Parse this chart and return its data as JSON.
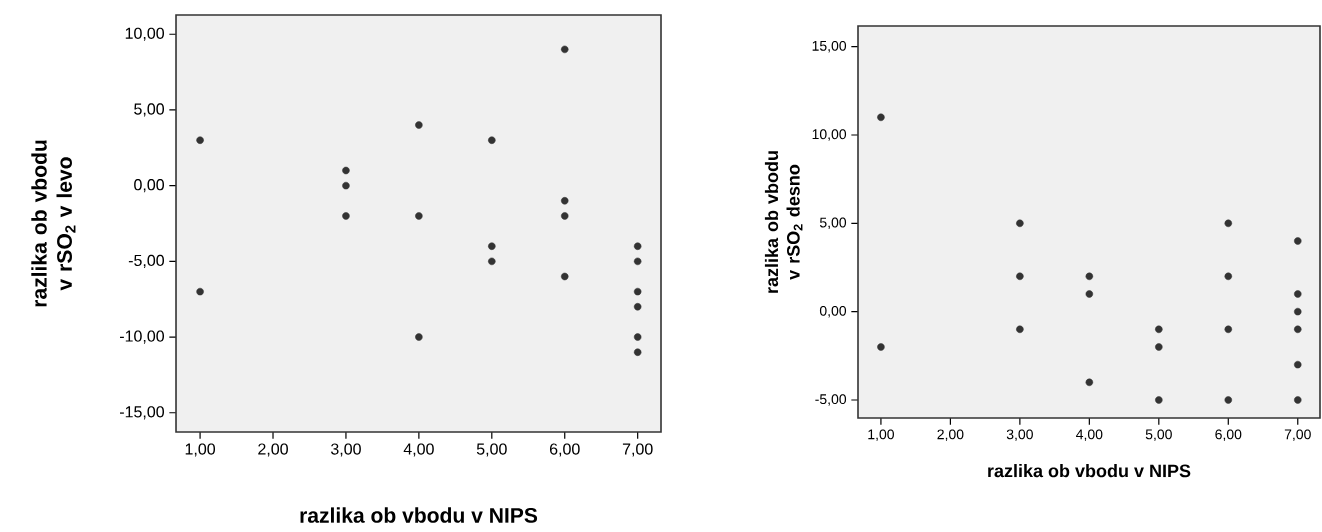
{
  "chart_data": [
    {
      "type": "scatter",
      "xlabel": "razlika ob vbodu v NIPS",
      "ylabel": "razlika ob vbodu v rSO$_{2}$ v levo",
      "xlim": [
        0.67,
        7.32
      ],
      "ylim": [
        -16.27,
        11.27
      ],
      "xticks": [
        {
          "value": 1,
          "label": "1,00"
        },
        {
          "value": 2,
          "label": "2,00"
        },
        {
          "value": 3,
          "label": "3,00"
        },
        {
          "value": 4,
          "label": "4,00"
        },
        {
          "value": 5,
          "label": "5,00"
        },
        {
          "value": 6,
          "label": "6,00"
        },
        {
          "value": 7,
          "label": "7,00"
        }
      ],
      "yticks": [
        {
          "value": -15,
          "label": "-15,00"
        },
        {
          "value": -10,
          "label": "-10,00"
        },
        {
          "value": -5,
          "label": "-5,00"
        },
        {
          "value": 0,
          "label": "0,00"
        },
        {
          "value": 5,
          "label": "5,00"
        },
        {
          "value": 10,
          "label": "10,00"
        }
      ],
      "series": [
        {
          "color": "#333333",
          "x": [
            1,
            1,
            3,
            3,
            3,
            4,
            4,
            4,
            5,
            5,
            5,
            6,
            6,
            6,
            6,
            7,
            7,
            7,
            7,
            7,
            7
          ],
          "values": [
            3,
            -7,
            1,
            0,
            -2,
            4,
            -2,
            -10,
            3,
            -4,
            -5,
            9,
            -1,
            -2,
            -6,
            -4,
            -5,
            -7,
            -8,
            -10,
            -11
          ]
        }
      ]
    },
    {
      "type": "scatter",
      "xlabel": "razlika ob vbodu v NIPS",
      "ylabel": "razlika ob vbodu v rSO$_{2}$ desno",
      "xlim": [
        0.67,
        7.32
      ],
      "ylim": [
        -6.02,
        16.17
      ],
      "xticks": [
        {
          "value": 1,
          "label": "1,00"
        },
        {
          "value": 2,
          "label": "2,00"
        },
        {
          "value": 3,
          "label": "3,00"
        },
        {
          "value": 4,
          "label": "4,00"
        },
        {
          "value": 5,
          "label": "5,00"
        },
        {
          "value": 6,
          "label": "6,00"
        },
        {
          "value": 7,
          "label": "7,00"
        }
      ],
      "yticks": [
        {
          "value": -5,
          "label": "-5,00"
        },
        {
          "value": 0,
          "label": "0,00"
        },
        {
          "value": 5,
          "label": "5,00"
        },
        {
          "value": 10,
          "label": "10,00"
        },
        {
          "value": 15,
          "label": "15,00"
        }
      ],
      "series": [
        {
          "color": "#333333",
          "x": [
            1,
            1,
            3,
            3,
            3,
            4,
            4,
            4,
            5,
            5,
            5,
            6,
            6,
            6,
            6,
            7,
            7,
            7,
            7,
            7,
            7
          ],
          "values": [
            11,
            -2,
            5,
            2,
            -1,
            2,
            1,
            -4,
            -1,
            -2,
            -5,
            5,
            2,
            -1,
            -5,
            4,
            1,
            0,
            -1,
            -3,
            -5
          ]
        }
      ]
    }
  ]
}
